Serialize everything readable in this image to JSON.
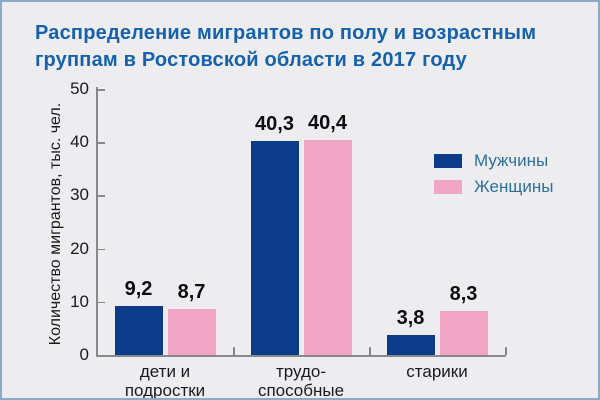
{
  "page": {
    "background": "#ededef",
    "border_color": "#8ea9c7"
  },
  "title": {
    "line1": "Распределение мигрантов по полу и возрастным",
    "line2": "группам в Ростовской области в 2017 году",
    "color": "#1561ad"
  },
  "chart_data": {
    "type": "bar",
    "title": "Распределение мигрантов по полу и возрастным группам в Ростовской области в 2017 году",
    "categories": [
      "дети и подростки",
      "трудоспособные",
      "старики"
    ],
    "categories_lines": [
      [
        "дети и",
        "подростки"
      ],
      [
        "трудо-",
        "способные"
      ],
      [
        "старики"
      ]
    ],
    "series": [
      {
        "name": "Мужчины",
        "color": "#0c3b8a",
        "values": [
          9.2,
          40.3,
          3.8
        ],
        "labels": [
          "9,2",
          "40,3",
          "3,8"
        ]
      },
      {
        "name": "Женщины",
        "color": "#f1a5c5",
        "values": [
          8.7,
          40.4,
          8.3
        ],
        "labels": [
          "8,7",
          "40,4",
          "8,3"
        ]
      }
    ],
    "xlabel": "",
    "ylabel": "Количество мигрантов, тыс. чел.",
    "ylim": [
      0,
      50
    ],
    "yticks": [
      0,
      10,
      20,
      30,
      40,
      50
    ],
    "grid": false,
    "legend_position": "right",
    "axis_color": "#88888c",
    "value_label_color": "#0d0d0d"
  },
  "legend": {
    "text_color": "#2d6f9b"
  }
}
